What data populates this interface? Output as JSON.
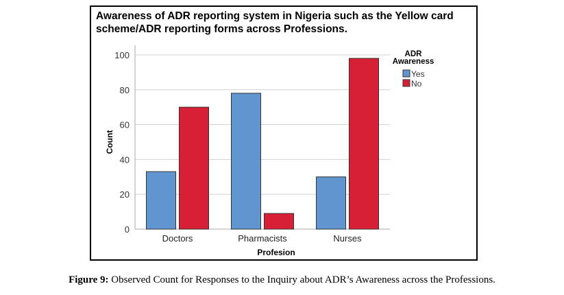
{
  "chart_data": {
    "type": "bar",
    "title": "Awareness of ADR reporting system in Nigeria such as the Yellow card scheme/ADR reporting forms across Professions.",
    "xlabel": "Profesion",
    "ylabel": "Count",
    "ylim": [
      0,
      100
    ],
    "yticks": [
      0,
      20,
      40,
      60,
      80,
      100
    ],
    "grid": true,
    "categories": [
      "Doctors",
      "Pharmacists",
      "Nurses"
    ],
    "legend_title": "ADR Awareness",
    "legend_placement": "top-right",
    "series": [
      {
        "name": "Yes",
        "color": "#6095cf",
        "values": [
          33,
          78,
          30
        ]
      },
      {
        "name": "No",
        "color": "#d71f35",
        "values": [
          70,
          9,
          98
        ]
      }
    ]
  },
  "caption": {
    "label": "Figure 9:",
    "text": " Observed Count for Responses to the Inquiry about ADR’s Awareness across the Professions."
  }
}
